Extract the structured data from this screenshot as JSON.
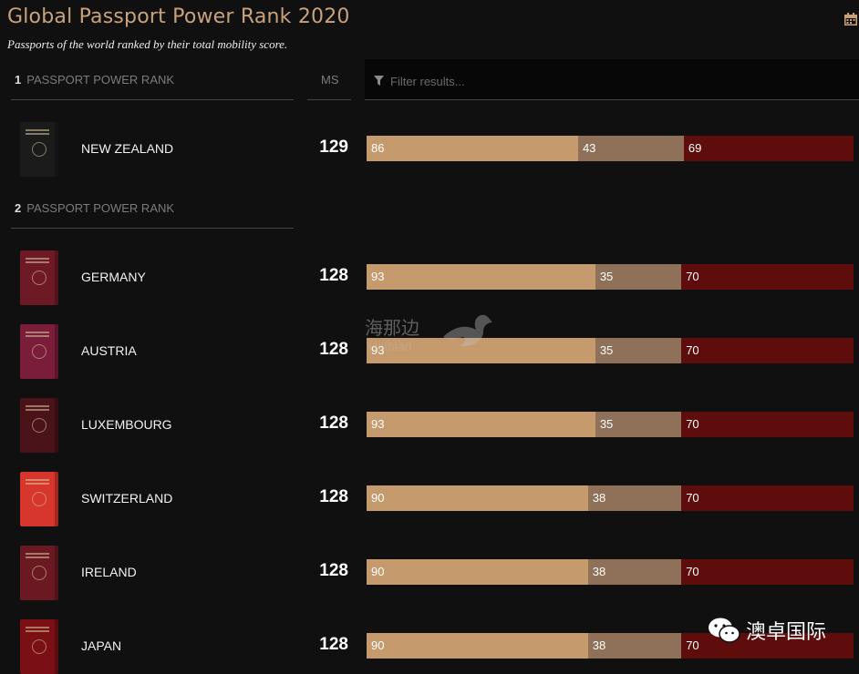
{
  "header": {
    "title": "Global Passport Power Rank 2020",
    "subtitle": "Passports of the world ranked by their total mobility score.",
    "calendar_icon": "calendar-icon"
  },
  "columns": {
    "ms_label": "MS",
    "filter_placeholder": "Filter results...",
    "filter_icon": "filter-icon"
  },
  "groups": [
    {
      "rank": "1",
      "label": "PASSPORT POWER RANK"
    },
    {
      "rank": "2",
      "label": "PASSPORT POWER RANK"
    }
  ],
  "countries": [
    {
      "name": "NEW ZEALAND",
      "ms": "129",
      "segments": [
        86,
        43,
        69
      ],
      "passport_color": "#1b1b1b"
    },
    {
      "name": "GERMANY",
      "ms": "128",
      "segments": [
        93,
        35,
        70
      ],
      "passport_color": "#6e1a26"
    },
    {
      "name": "AUSTRIA",
      "ms": "128",
      "segments": [
        93,
        35,
        70
      ],
      "passport_color": "#7a1d3a"
    },
    {
      "name": "LUXEMBOURG",
      "ms": "128",
      "segments": [
        93,
        35,
        70
      ],
      "passport_color": "#4a1219"
    },
    {
      "name": "SWITZERLAND",
      "ms": "128",
      "segments": [
        90,
        38,
        70
      ],
      "passport_color": "#d6362c"
    },
    {
      "name": "IRELAND",
      "ms": "128",
      "segments": [
        90,
        38,
        70
      ],
      "passport_color": "#6a1922"
    },
    {
      "name": "JAPAN",
      "ms": "128",
      "segments": [
        90,
        38,
        70
      ],
      "passport_color": "#7a1016"
    }
  ],
  "segment_colors": [
    "#c59a6c",
    "#8e7158",
    "#5e0d0c"
  ],
  "watermark": {
    "line1": "海那边",
    "line2": "Haibian"
  },
  "badge": {
    "label": "澳卓国际",
    "icon": "wechat-icon"
  }
}
